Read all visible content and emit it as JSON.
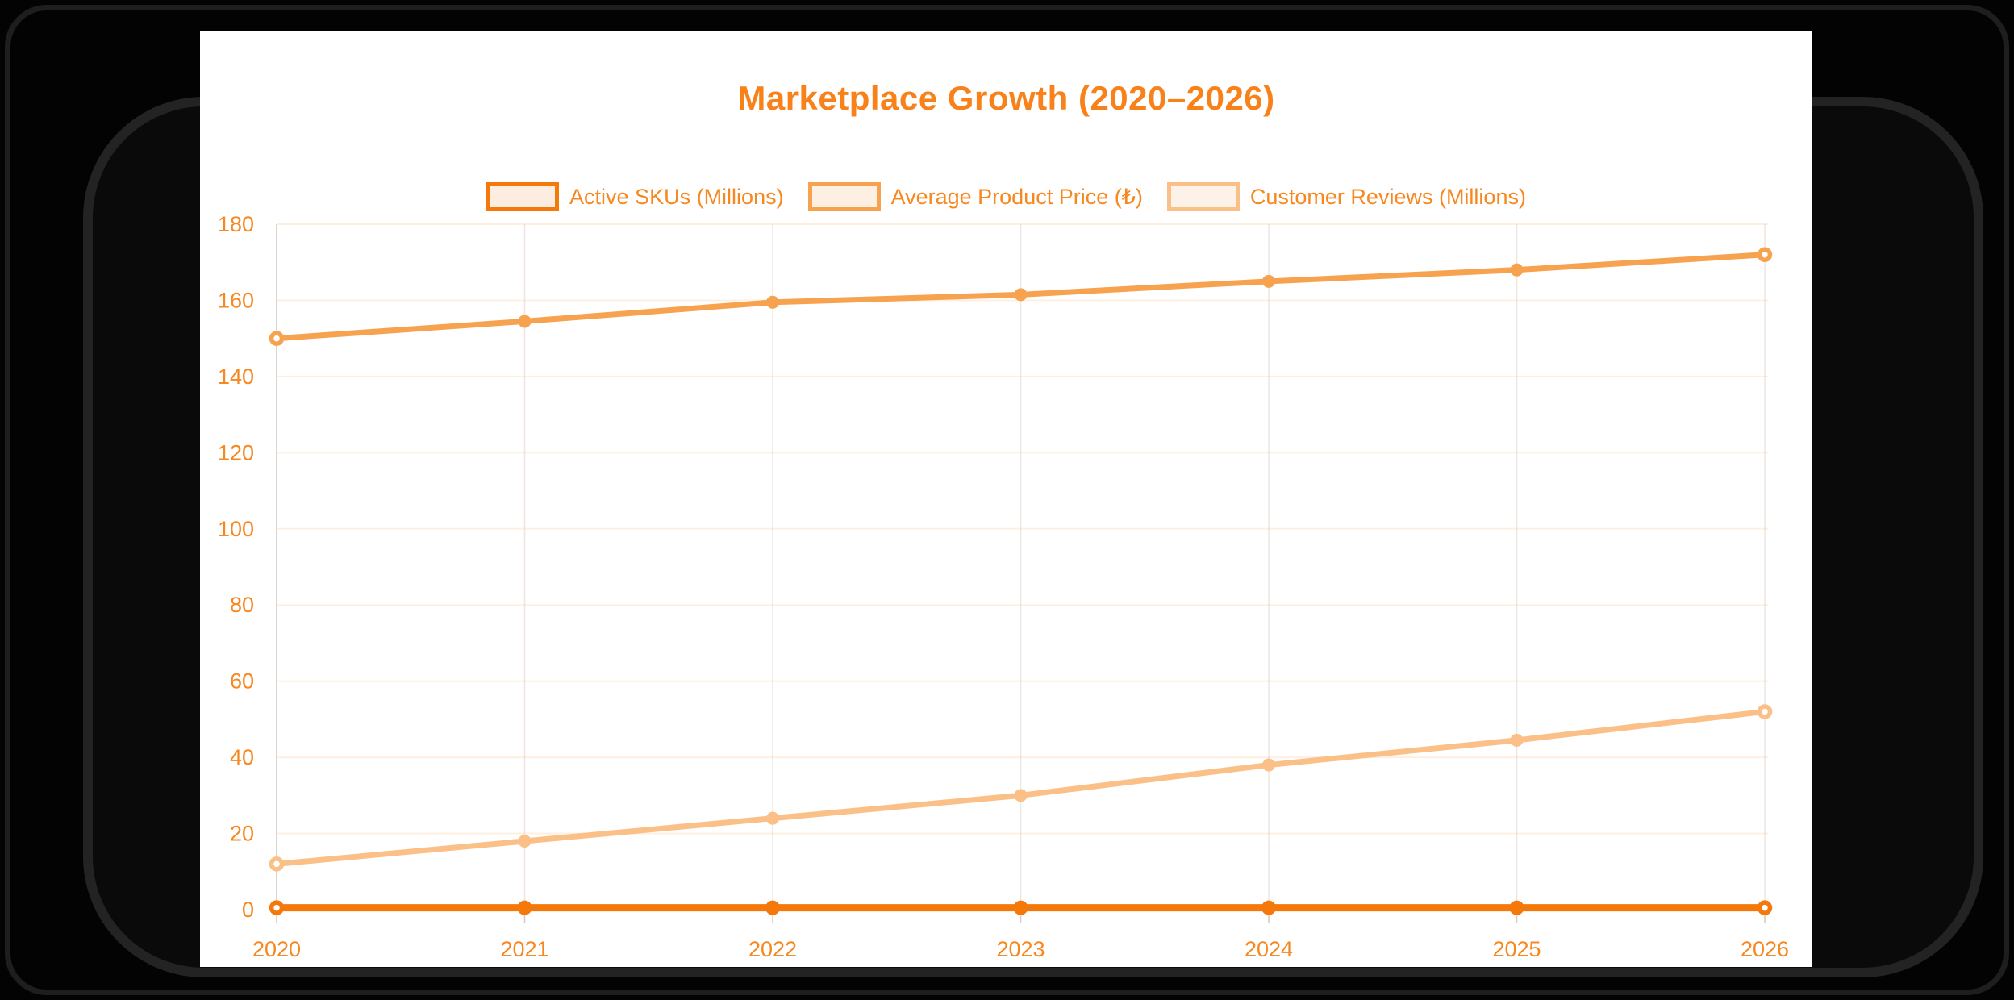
{
  "page": {
    "background": "#030303",
    "card_background": "#FFFFFF",
    "frame_outline_color": "#232323",
    "title_color": "#F8811A",
    "axis_label_color": "#F7871F"
  },
  "title": "Marketplace Growth (2020–2026)",
  "legend": [
    {
      "label": "Active SKUs (Millions)",
      "color": "#F5780A",
      "fill": "#FCEDE0"
    },
    {
      "label": "Average Product Price (₺)",
      "color": "#F7A24E",
      "fill": "#FDF0E2"
    },
    {
      "label": "Customer Reviews (Millions)",
      "color": "#FAC087",
      "fill": "#FDF2E7"
    }
  ],
  "chart_data": {
    "type": "line",
    "title": "Marketplace Growth (2020–2026)",
    "categories": [
      "2020",
      "2021",
      "2022",
      "2023",
      "2024",
      "2025",
      "2026"
    ],
    "series": [
      {
        "name": "Active SKUs (Millions)",
        "color": "#F5780A",
        "values": [
          0.5,
          0.5,
          0.5,
          0.5,
          0.5,
          0.5,
          0.5
        ]
      },
      {
        "name": "Average Product Price (₺)",
        "color": "#F7A24E",
        "values": [
          150,
          154.5,
          159.5,
          161.5,
          165,
          168,
          172
        ]
      },
      {
        "name": "Customer Reviews (Millions)",
        "color": "#FAC087",
        "values": [
          12,
          18,
          24,
          30,
          38,
          44.5,
          52
        ]
      }
    ],
    "xlabel": "",
    "ylabel": "",
    "ylim": [
      0,
      180
    ],
    "y_ticks": [
      0,
      20,
      40,
      60,
      80,
      100,
      120,
      140,
      160,
      180
    ],
    "grid": true,
    "legend_position": "top"
  }
}
